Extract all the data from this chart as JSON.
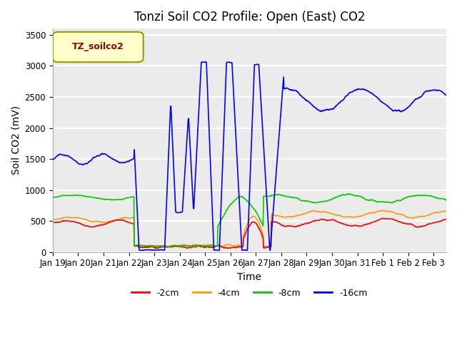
{
  "title": "Tonzi Soil CO2 Profile: Open (East) CO2",
  "ylabel": "Soil CO2 (mV)",
  "xlabel": "Time",
  "legend_label": "TZ_soilco2",
  "series_labels": [
    "-2cm",
    "-4cm",
    "-8cm",
    "-16cm"
  ],
  "series_colors": [
    "#ff0000",
    "#ff9900",
    "#00cc00",
    "#0000ff"
  ],
  "ylim": [
    0,
    3600
  ],
  "yticks": [
    0,
    500,
    1000,
    1500,
    2000,
    2500,
    3000,
    3500
  ],
  "plot_bg": "#ebebeb",
  "title_fontsize": 12,
  "axis_fontsize": 10,
  "tick_fontsize": 8.5,
  "legend_box_color": "#ffffcc",
  "legend_text_color": "#990000",
  "legend_border_color": "#999900"
}
